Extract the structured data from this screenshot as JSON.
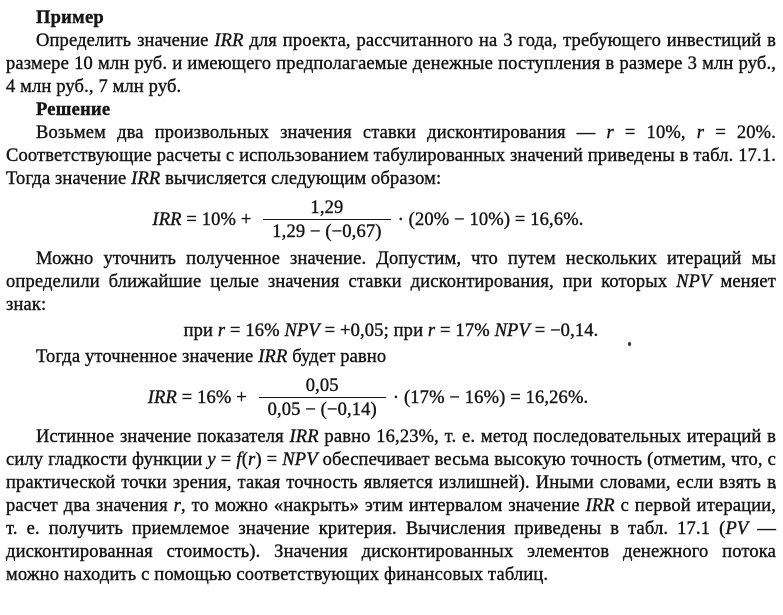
{
  "page": {
    "background": "#ffffff",
    "text_color": "#161616",
    "language": "ru"
  },
  "doc": {
    "blocks": [
      {
        "type": "heading",
        "text": "Пример"
      },
      {
        "type": "para",
        "runs": [
          {
            "t": "Определить значение "
          },
          {
            "t": "IRR",
            "i": true
          },
          {
            "t": " для проекта, рассчитанного на 3 года, требующего инвестиций в размере 10 млн руб. и имеющего предполагаемые денежные поступления в размере 3 млн руб., 4 млн руб., 7 млн руб."
          }
        ]
      },
      {
        "type": "heading",
        "text": "Решение"
      },
      {
        "type": "para",
        "runs": [
          {
            "t": "Возьмем два произвольных значения ставки дисконтирования — "
          },
          {
            "t": "r",
            "i": true
          },
          {
            "t": " = 10%, "
          },
          {
            "t": "r",
            "i": true
          },
          {
            "t": " = 20%. Соответствующие расчеты с использованием табулированных значений приведены в табл. 17.1. Тогда значение "
          },
          {
            "t": "IRR",
            "i": true
          },
          {
            "t": " вычисляется следующим образом:"
          }
        ]
      },
      {
        "type": "formula",
        "lead": [
          {
            "t": "IRR",
            "i": true
          },
          {
            "t": " = 10% + "
          }
        ],
        "numerator": "1,29",
        "denominator": "1,29 − (−0,67)",
        "tail": [
          {
            "t": "· (20% − 10%) = 16,6%."
          }
        ]
      },
      {
        "type": "para",
        "runs": [
          {
            "t": "Можно уточнить полученное значение. Допустим, что путем нескольких итераций мы определили ближайшие целые значения ставки дисконтирования, при которых "
          },
          {
            "t": "NPV",
            "i": true
          },
          {
            "t": " меняет знак:"
          }
        ]
      },
      {
        "type": "center",
        "runs": [
          {
            "t": "при "
          },
          {
            "t": "r",
            "i": true
          },
          {
            "t": " = 16% "
          },
          {
            "t": "NPV",
            "i": true
          },
          {
            "t": " = +0,05; при "
          },
          {
            "t": "r",
            "i": true
          },
          {
            "t": " = 17% "
          },
          {
            "t": "NPV",
            "i": true
          },
          {
            "t": " = −0,14."
          }
        ]
      },
      {
        "type": "para",
        "runs": [
          {
            "t": "Тогда уточненное значение "
          },
          {
            "t": "IRR",
            "i": true
          },
          {
            "t": " будет равно"
          }
        ]
      },
      {
        "type": "formula",
        "lead": [
          {
            "t": "IRR",
            "i": true
          },
          {
            "t": " = 16% + "
          }
        ],
        "numerator": "0,05",
        "denominator": "0,05 − (−0,14)",
        "tail": [
          {
            "t": "· (17% − 16%) = 16,26%."
          }
        ]
      },
      {
        "type": "para",
        "runs": [
          {
            "t": "Истинное значение показателя "
          },
          {
            "t": "IRR",
            "i": true
          },
          {
            "t": " равно 16,23%, т. е. метод последовательных итераций в силу гладкости функции "
          },
          {
            "t": "y",
            "i": true
          },
          {
            "t": " = "
          },
          {
            "t": "f",
            "i": true
          },
          {
            "t": "("
          },
          {
            "t": "r",
            "i": true
          },
          {
            "t": ") = "
          },
          {
            "t": "NPV",
            "i": true
          },
          {
            "t": " обеспечивает весьма высокую точность (отметим, что, с практической точки зрения, такая точность является излишней). Иными словами, если взять в расчет два значения "
          },
          {
            "t": "r",
            "i": true
          },
          {
            "t": ", то можно «накрыть» этим интервалом значение "
          },
          {
            "t": "IRR",
            "i": true
          },
          {
            "t": " с первой итерации, т. е. получить приемлемое значение критерия. Вычисления приведены в табл. 17.1 ("
          },
          {
            "t": "PV",
            "i": true
          },
          {
            "t": " — дисконтированная стоимость). Значения дисконтированных элементов денежного потока можно находить с помощью соответствующих финансовых таблиц."
          }
        ]
      }
    ]
  }
}
